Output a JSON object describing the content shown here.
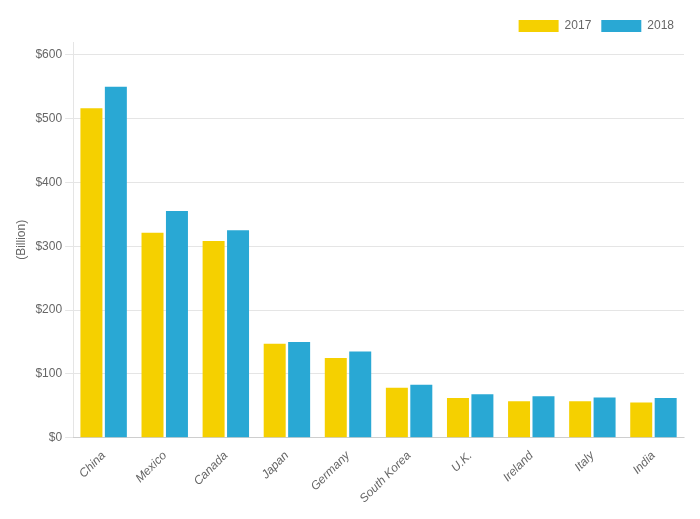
{
  "chart_data": {
    "type": "bar",
    "categories": [
      "China",
      "Mexico",
      "Canada",
      "Japan",
      "Germany",
      "South Korea",
      "U.K.",
      "Ireland",
      "Italy",
      "India"
    ],
    "series": [
      {
        "name": "2017",
        "color": "#F5D000",
        "values": [
          516,
          321,
          308,
          147,
          125,
          78,
          62,
          57,
          57,
          55
        ]
      },
      {
        "name": "2018",
        "color": "#29A8D4",
        "values": [
          550,
          355,
          325,
          150,
          135,
          83,
          68,
          65,
          63,
          62
        ]
      }
    ],
    "ylabel": "(Billion)",
    "ylim": [
      0,
      620
    ],
    "yticks": [
      {
        "value": 0,
        "label": "$0"
      },
      {
        "value": 100,
        "label": "$100"
      },
      {
        "value": 200,
        "label": "$200"
      },
      {
        "value": 300,
        "label": "$300"
      },
      {
        "value": 400,
        "label": "$400"
      },
      {
        "value": 500,
        "label": "$500"
      },
      {
        "value": 600,
        "label": "$600"
      }
    ],
    "grid": true,
    "legend": "upper right"
  }
}
